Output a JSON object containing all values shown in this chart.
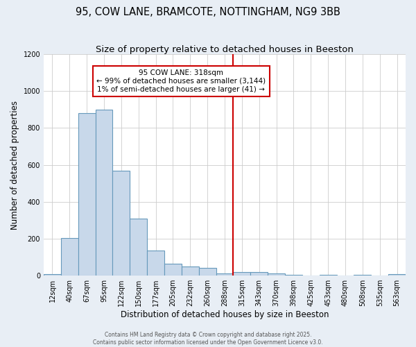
{
  "title": "95, COW LANE, BRAMCOTE, NOTTINGHAM, NG9 3BB",
  "subtitle": "Size of property relative to detached houses in Beeston",
  "xlabel": "Distribution of detached houses by size in Beeston",
  "ylabel": "Number of detached properties",
  "bar_labels": [
    "12sqm",
    "40sqm",
    "67sqm",
    "95sqm",
    "122sqm",
    "150sqm",
    "177sqm",
    "205sqm",
    "232sqm",
    "260sqm",
    "288sqm",
    "315sqm",
    "343sqm",
    "370sqm",
    "398sqm",
    "425sqm",
    "453sqm",
    "480sqm",
    "508sqm",
    "535sqm",
    "563sqm"
  ],
  "bar_values": [
    10,
    205,
    880,
    900,
    570,
    310,
    135,
    65,
    50,
    42,
    12,
    20,
    18,
    12,
    4,
    2,
    4,
    1,
    5,
    1,
    9
  ],
  "bar_color": "#c8d8ea",
  "bar_edge_color": "#6699bb",
  "plot_background": "#ffffff",
  "fig_background": "#e8eef5",
  "grid_color": "#cccccc",
  "vline_color": "#cc0000",
  "annotation_text": "95 COW LANE: 318sqm\n← 99% of detached houses are smaller (3,144)\n1% of semi-detached houses are larger (41) →",
  "annotation_box_color": "#ffffff",
  "annotation_box_edge_color": "#cc0000",
  "ylim": [
    0,
    1200
  ],
  "yticks": [
    0,
    200,
    400,
    600,
    800,
    1000,
    1200
  ],
  "footer_text": "Contains HM Land Registry data © Crown copyright and database right 2025.\nContains public sector information licensed under the Open Government Licence v3.0.",
  "title_fontsize": 10.5,
  "subtitle_fontsize": 9.5,
  "tick_fontsize": 7,
  "ylabel_fontsize": 8.5,
  "xlabel_fontsize": 8.5,
  "annot_fontsize": 7.5,
  "footer_fontsize": 5.5
}
